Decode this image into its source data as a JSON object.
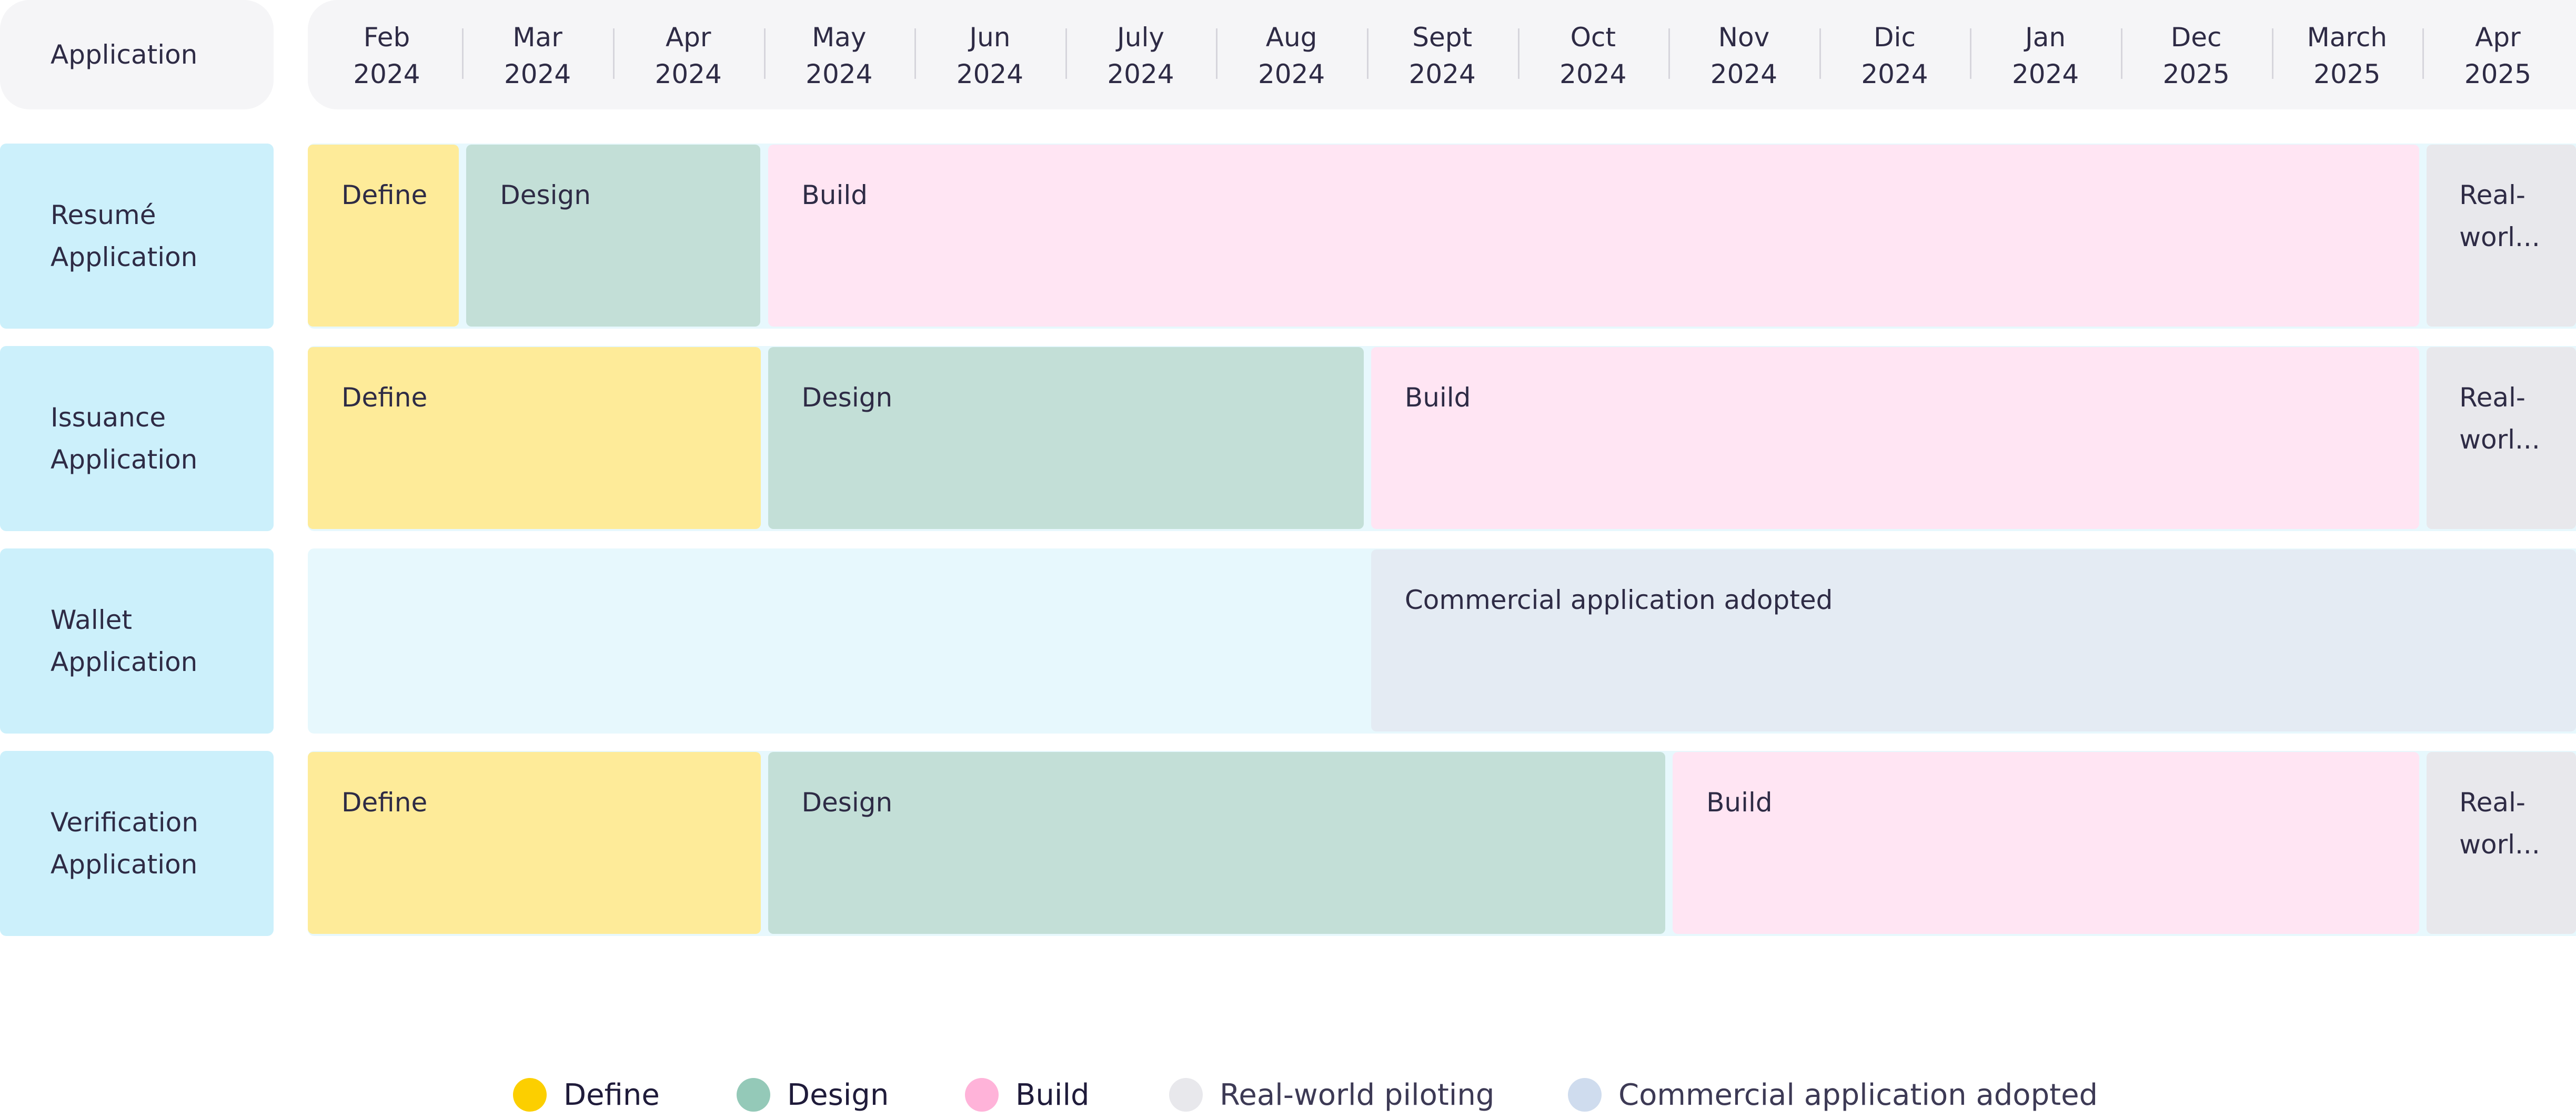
{
  "chart_data": {
    "type": "gantt",
    "header_label": "Application",
    "months": [
      {
        "month": "Feb",
        "year": "2024"
      },
      {
        "month": "Mar",
        "year": "2024"
      },
      {
        "month": "Apr",
        "year": "2024"
      },
      {
        "month": "May",
        "year": "2024"
      },
      {
        "month": "Jun",
        "year": "2024"
      },
      {
        "month": "July",
        "year": "2024"
      },
      {
        "month": "Aug",
        "year": "2024"
      },
      {
        "month": "Sept",
        "year": "2024"
      },
      {
        "month": "Oct",
        "year": "2024"
      },
      {
        "month": "Nov",
        "year": "2024"
      },
      {
        "month": "Dic",
        "year": "2024"
      },
      {
        "month": "Jan",
        "year": "2024"
      },
      {
        "month": "Dec",
        "year": "2025"
      },
      {
        "month": "March",
        "year": "2025"
      },
      {
        "month": "Apr",
        "year": "2025"
      }
    ],
    "rows": [
      {
        "label": "Resumé\nApplication",
        "phases": [
          {
            "phase": "define",
            "label": "Define",
            "start": 0,
            "end": 1
          },
          {
            "phase": "design",
            "label": "Design",
            "start": 1,
            "end": 3
          },
          {
            "phase": "build",
            "label": "Build",
            "start": 3,
            "end": 14
          },
          {
            "phase": "real-world-piloting",
            "label": "Real-\nworl...",
            "start": 14,
            "end": 15
          }
        ]
      },
      {
        "label": "Issuance\nApplication",
        "phases": [
          {
            "phase": "define",
            "label": "Define",
            "start": 0,
            "end": 3
          },
          {
            "phase": "design",
            "label": "Design",
            "start": 3,
            "end": 7
          },
          {
            "phase": "build",
            "label": "Build",
            "start": 7,
            "end": 14
          },
          {
            "phase": "real-world-piloting",
            "label": "Real-\nworl...",
            "start": 14,
            "end": 15
          }
        ]
      },
      {
        "label": "Wallet\nApplication",
        "phases": [
          {
            "phase": "commercial-application-adopted",
            "label": "Commercial application adopted",
            "start": 7,
            "end": 15
          }
        ]
      },
      {
        "label": "Verification\nApplication",
        "phases": [
          {
            "phase": "define",
            "label": "Define",
            "start": 0,
            "end": 3
          },
          {
            "phase": "design",
            "label": "Design",
            "start": 3,
            "end": 9
          },
          {
            "phase": "build",
            "label": "Build",
            "start": 9,
            "end": 14
          },
          {
            "phase": "real-world-piloting",
            "label": "Real-\nworl...",
            "start": 14,
            "end": 15
          }
        ]
      }
    ],
    "legend": [
      {
        "phase": "define",
        "label": "Define",
        "color": "#fccf00"
      },
      {
        "phase": "design",
        "label": "Design",
        "color": "#94c9b8"
      },
      {
        "phase": "build",
        "label": "Build",
        "color": "#ffb3d9"
      },
      {
        "phase": "real-world-piloting",
        "label": "Real-world piloting",
        "color": "#e8e8ec"
      },
      {
        "phase": "commercial-application-adopted",
        "label": "Commercial application adopted",
        "color": "#cfdcee"
      }
    ],
    "legend_position": "bottom-center"
  }
}
